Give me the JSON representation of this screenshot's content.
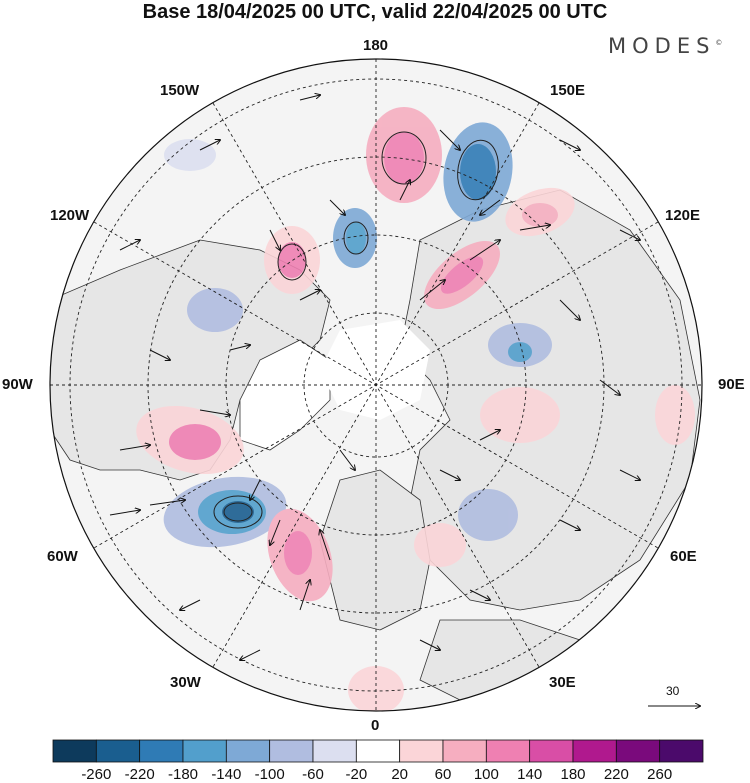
{
  "header": {
    "title": "Base 18/04/2025 00 UTC, valid 22/04/2025 00 UTC",
    "brand": "MODES",
    "brand_mark": "©"
  },
  "map": {
    "projection": "north-polar-stereographic",
    "longitude_labels": {
      "top": "180",
      "top_left": "150W",
      "top_right": "150E",
      "upper_left": "120W",
      "upper_right": "120E",
      "left": "90W",
      "right": "90E",
      "lower_left": "60W",
      "lower_right": "60E",
      "bottom_left": "30W",
      "bottom_right": "30E",
      "bottom": "0"
    },
    "reference_vector_label": "30",
    "colors": {
      "land": "#e6e6e6",
      "ocean": "#f4f4f4",
      "coast": "#333333"
    }
  },
  "colorbar": {
    "labels": [
      "-260",
      "-220",
      "-180",
      "-140",
      "-100",
      "-60",
      "-20",
      "20",
      "60",
      "100",
      "140",
      "180",
      "220",
      "260"
    ],
    "colors": [
      "#0d3a5c",
      "#1a5e8f",
      "#2f7bb5",
      "#529fcc",
      "#7ea9d6",
      "#b0bde0",
      "#dcdff0",
      "#ffffff",
      "#fbd5d8",
      "#f6aec0",
      "#ef80b2",
      "#d94ea6",
      "#b0198e",
      "#7a0a7c",
      "#4b0a6b"
    ]
  }
}
